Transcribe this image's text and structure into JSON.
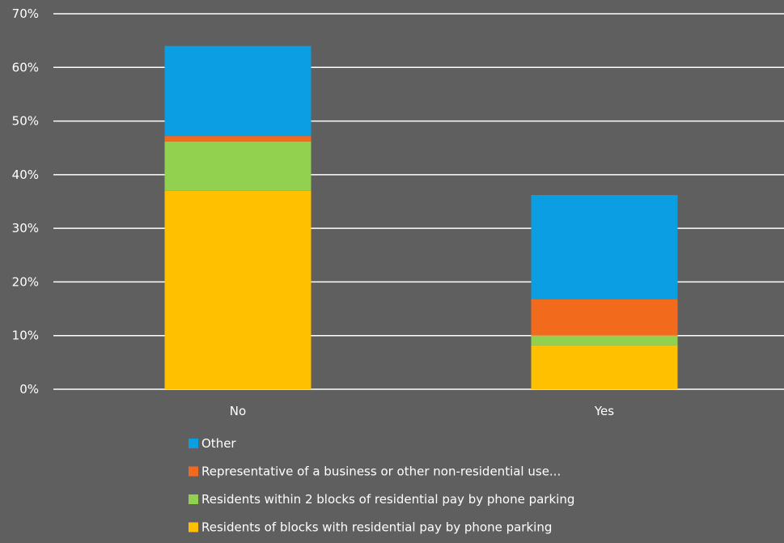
{
  "chart_data": {
    "type": "bar",
    "stacked": true,
    "categories": [
      "No",
      "Yes"
    ],
    "series": [
      {
        "name": "Residents of blocks with residential pay by phone parking",
        "values": [
          37,
          8.2
        ],
        "color": "#ffc000"
      },
      {
        "name": "Residents within 2 blocks of residential pay by phone parking",
        "values": [
          9.2,
          1.8
        ],
        "color": "#92d050"
      },
      {
        "name": "Representative of a business or other non-residential use...",
        "values": [
          1,
          6.8
        ],
        "color": "#f26b1d"
      },
      {
        "name": "Other",
        "values": [
          16.8,
          19.4
        ],
        "color": "#0c9ee2"
      }
    ],
    "y_ticks": [
      "0%",
      "10%",
      "20%",
      "30%",
      "40%",
      "50%",
      "60%",
      "70%"
    ],
    "ylim": [
      0,
      70
    ],
    "grid": true,
    "legend_position": "bottom",
    "legend_order": [
      "Other",
      "Representative of a business or other non-residential use...",
      "Residents within 2 blocks of residential pay by phone parking",
      "Residents of blocks with residential pay by phone parking"
    ],
    "title": "",
    "xlabel": "",
    "ylabel": ""
  },
  "colors": {
    "background": "#5f5f5f",
    "gridline": "#ffffff",
    "text": "#ffffff"
  }
}
